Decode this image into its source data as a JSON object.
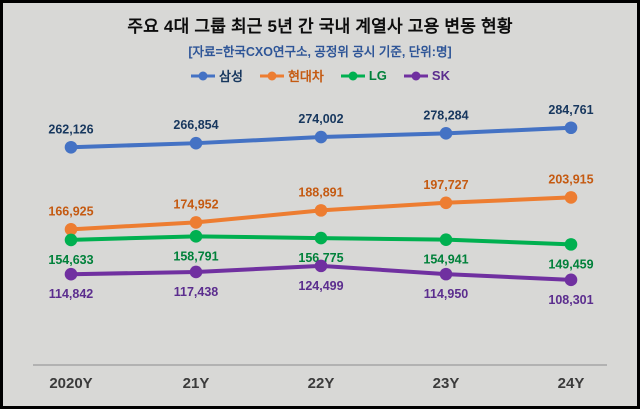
{
  "title": "주요 4대 그룹 최근 5년 간 국내 계열사 고용 변동 현황",
  "subtitle": "[자료=한국CXO연구소, 공정위 공시 기준, 단위:명]",
  "colors": {
    "background": "#d8d8d6",
    "border": "#000000",
    "subtitle_text": "#2e5597",
    "axis_line": "#a6a6a6",
    "axis_label_text": "#3b3b3b"
  },
  "chart_data": {
    "type": "line",
    "categories": [
      "2020Y",
      "21Y",
      "22Y",
      "23Y",
      "24Y"
    ],
    "series": [
      {
        "name": "삼성",
        "color": "#4472c4",
        "label_color": "#17375e",
        "label_position": "above",
        "values": [
          262126,
          266854,
          274002,
          278284,
          284761
        ]
      },
      {
        "name": "현대차",
        "color": "#ed7d31",
        "label_color": "#c55a11",
        "label_position": "above",
        "values": [
          166925,
          174952,
          188891,
          197727,
          203915
        ]
      },
      {
        "name": "LG",
        "color": "#00b050",
        "label_color": "#00813a",
        "label_position": "below",
        "values": [
          154633,
          158791,
          156775,
          154941,
          149459
        ]
      },
      {
        "name": "SK",
        "color": "#7030a0",
        "label_color": "#5b2d8e",
        "label_position": "below",
        "values": [
          114842,
          117438,
          124499,
          114950,
          108301
        ]
      }
    ],
    "ylim": [
      100000,
      310000
    ],
    "legend_position": "top",
    "grid": false
  }
}
